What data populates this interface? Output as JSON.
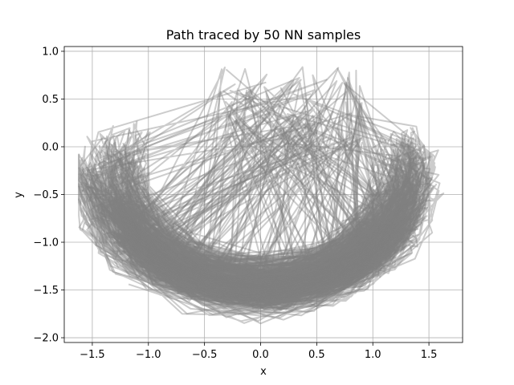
{
  "chart_data": {
    "type": "line",
    "title": "Path traced by 50 NN samples",
    "xlabel": "x",
    "ylabel": "y",
    "xlim": [
      -1.75,
      1.8
    ],
    "ylim": [
      -2.05,
      1.05
    ],
    "xticks": [
      -1.5,
      -1.0,
      -0.5,
      0.0,
      0.5,
      1.0,
      1.5
    ],
    "xtick_labels": [
      "−1.5",
      "−1.0",
      "−0.5",
      "0.0",
      "0.5",
      "1.0",
      "1.5"
    ],
    "yticks": [
      1.0,
      0.5,
      0.0,
      -0.5,
      -1.0,
      -1.5,
      -2.0
    ],
    "ytick_labels": [
      "1.0",
      "0.5",
      "0.0",
      "−0.5",
      "−1.0",
      "−1.5",
      "−2.0"
    ],
    "grid": true,
    "legend": "none",
    "line_color": "#808080",
    "line_alpha": 0.4,
    "series_count": 50,
    "points_per_series": 120,
    "data_note_for_render": "paths trace noisy pendulum-like arcs centered near (0,-1.3)"
  }
}
